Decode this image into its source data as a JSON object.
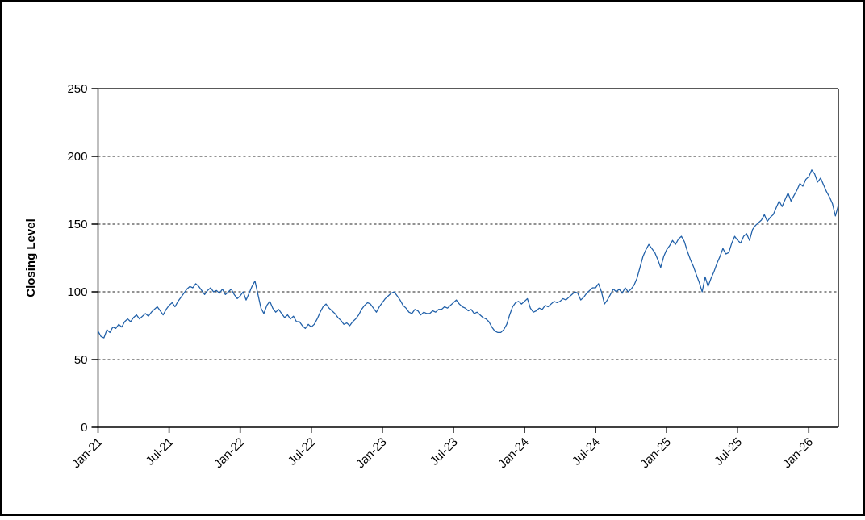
{
  "chart_data": {
    "type": "line",
    "title": "",
    "xlabel": "",
    "ylabel": "Closing Level",
    "ylim": [
      0,
      250
    ],
    "yticks": [
      0,
      50,
      100,
      150,
      200,
      250
    ],
    "gridline_values": [
      50,
      100,
      150,
      200
    ],
    "grid": "horizontal-dashed",
    "legend_position": "none",
    "x_unit": "months since Jan-2021",
    "x_range": [
      0,
      62.5
    ],
    "xtick_labels": [
      "Jan-21",
      "Jul-21",
      "Jan-22",
      "Jul-22",
      "Jan-23",
      "Jul-23",
      "Jan-24",
      "Jul-24",
      "Jan-25",
      "Jul-25",
      "Jan-26"
    ],
    "xtick_positions_months": [
      0,
      6,
      12,
      18,
      24,
      30,
      36,
      42,
      48,
      54,
      60
    ],
    "x_start_month": 0,
    "x_step_month": 0.25,
    "series": [
      {
        "name": "Closing Level",
        "color": "#1F5FA8",
        "values": [
          71,
          67,
          66,
          72,
          70,
          74,
          73,
          76,
          74,
          78,
          80,
          78,
          81,
          83,
          80,
          82,
          84,
          82,
          85,
          87,
          89,
          86,
          83,
          87,
          90,
          92,
          89,
          93,
          96,
          99,
          102,
          104,
          103,
          106,
          104,
          101,
          98,
          101,
          103,
          100,
          101,
          99,
          102,
          98,
          100,
          102,
          98,
          95,
          97,
          100,
          94,
          99,
          104,
          108,
          98,
          88,
          84,
          90,
          93,
          88,
          85,
          87,
          84,
          81,
          83,
          80,
          82,
          78,
          78,
          75,
          73,
          76,
          74,
          76,
          80,
          85,
          89,
          91,
          88,
          86,
          84,
          81,
          79,
          76,
          77,
          75,
          78,
          80,
          83,
          87,
          90,
          92,
          91,
          88,
          85,
          89,
          92,
          95,
          97,
          99,
          100,
          97,
          94,
          90,
          88,
          85,
          84,
          87,
          86,
          83,
          85,
          84,
          84,
          86,
          85,
          87,
          87,
          89,
          88,
          90,
          92,
          94,
          91,
          89,
          88,
          86,
          87,
          84,
          85,
          83,
          81,
          80,
          78,
          74,
          71,
          70,
          70,
          72,
          76,
          83,
          89,
          92,
          93,
          91,
          93,
          95,
          88,
          85,
          86,
          88,
          87,
          90,
          89,
          91,
          93,
          92,
          93,
          95,
          94,
          96,
          98,
          100,
          99,
          94,
          96,
          99,
          101,
          103,
          103,
          106,
          100,
          91,
          94,
          98,
          102,
          100,
          102,
          99,
          103,
          100,
          102,
          105,
          110,
          118,
          126,
          131,
          135,
          132,
          129,
          124,
          118,
          126,
          131,
          134,
          138,
          135,
          139,
          141,
          137,
          130,
          124,
          119,
          113,
          107,
          100,
          111,
          104,
          110,
          115,
          121,
          126,
          132,
          128,
          129,
          136,
          141,
          138,
          136,
          141,
          143,
          138,
          146,
          149,
          151,
          153,
          157,
          152,
          155,
          157,
          162,
          167,
          163,
          168,
          173,
          167,
          171,
          175,
          180,
          178,
          183,
          185,
          190,
          187,
          181,
          184,
          179,
          174,
          170,
          165,
          156,
          164
        ]
      }
    ]
  },
  "colors": {
    "line": "#1F5FA8",
    "plot_frame_gray": "#595959",
    "axis": "#000000",
    "gridline": "#262626",
    "background": "#FFFFFF",
    "canvas_border": "#000000"
  }
}
